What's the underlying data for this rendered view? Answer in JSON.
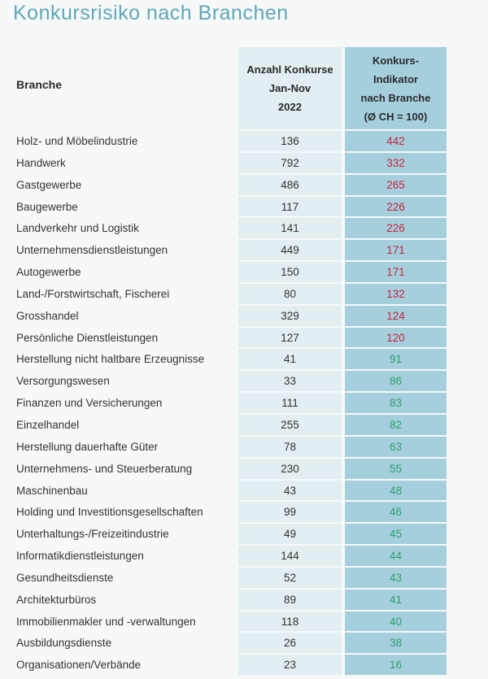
{
  "title": "Konkursrisiko nach Branchen",
  "colors": {
    "title": "#5fa9b9",
    "col_count_bg": "#e2eef1",
    "col_indicator_bg": "#a5cfdd",
    "above_average": "#c8243c",
    "below_average": "#2f9e6e"
  },
  "headers": {
    "branche": "Branche",
    "count": [
      "Anzahl Konkurse",
      "Jan-Nov",
      "2022"
    ],
    "indicator": [
      "Konkurs-",
      "Indikator",
      "nach Branche",
      "(Ø CH = 100)"
    ]
  },
  "rows": [
    {
      "branche": "Holz- und Möbelindustrie",
      "count": "136",
      "indicator": "442",
      "level": "high"
    },
    {
      "branche": "Handwerk",
      "count": "792",
      "indicator": "332",
      "level": "high"
    },
    {
      "branche": "Gastgewerbe",
      "count": "486",
      "indicator": "265",
      "level": "high"
    },
    {
      "branche": "Baugewerbe",
      "count": "117",
      "indicator": "226",
      "level": "high"
    },
    {
      "branche": "Landverkehr und Logistik",
      "count": "141",
      "indicator": "226",
      "level": "high"
    },
    {
      "branche": "Unternehmensdienstleistungen",
      "count": "449",
      "indicator": "171",
      "level": "high"
    },
    {
      "branche": "Autogewerbe",
      "count": "150",
      "indicator": "171",
      "level": "high"
    },
    {
      "branche": "Land-/Forstwirtschaft, Fischerei",
      "count": "80",
      "indicator": "132",
      "level": "high"
    },
    {
      "branche": "Grosshandel",
      "count": "329",
      "indicator": "124",
      "level": "high"
    },
    {
      "branche": "Persönliche Dienstleistungen",
      "count": "127",
      "indicator": "120",
      "level": "high"
    },
    {
      "branche": "Herstellung nicht haltbare Erzeugnisse",
      "count": "41",
      "indicator": "91",
      "level": "low"
    },
    {
      "branche": "Versorgungswesen",
      "count": "33",
      "indicator": "86",
      "level": "low"
    },
    {
      "branche": "Finanzen und Versicherungen",
      "count": "111",
      "indicator": "83",
      "level": "low"
    },
    {
      "branche": "Einzelhandel",
      "count": "255",
      "indicator": "82",
      "level": "low"
    },
    {
      "branche": "Herstellung dauerhafte Güter",
      "count": "78",
      "indicator": "63",
      "level": "low"
    },
    {
      "branche": "Unternehmens- und Steuerberatung",
      "count": "230",
      "indicator": "55",
      "level": "low"
    },
    {
      "branche": "Maschinenbau",
      "count": "43",
      "indicator": "48",
      "level": "low"
    },
    {
      "branche": "Holding und Investitionsgesellschaften",
      "count": "99",
      "indicator": "46",
      "level": "low"
    },
    {
      "branche": "Unterhaltungs-/Freizeitindustrie",
      "count": "49",
      "indicator": "45",
      "level": "low"
    },
    {
      "branche": "Informatikdienstleistungen",
      "count": "144",
      "indicator": "44",
      "level": "low"
    },
    {
      "branche": "Gesundheitsdienste",
      "count": "52",
      "indicator": "43",
      "level": "low"
    },
    {
      "branche": "Architekturbüros",
      "count": "89",
      "indicator": "41",
      "level": "low"
    },
    {
      "branche": "Immobilienmakler und -verwaltungen",
      "count": "118",
      "indicator": "40",
      "level": "low"
    },
    {
      "branche": "Ausbildungsdienste",
      "count": "26",
      "indicator": "38",
      "level": "low"
    },
    {
      "branche": "Organisationen/Verbände",
      "count": "23",
      "indicator": "16",
      "level": "low"
    }
  ]
}
